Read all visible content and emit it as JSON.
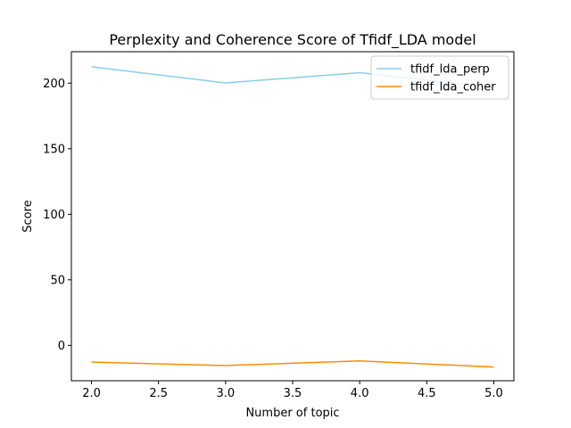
{
  "chart_data": {
    "type": "line",
    "title": "Perplexity and Coherence Score of Tfidf_LDA model",
    "xlabel": "Number of topic",
    "ylabel": "Score",
    "xlim": [
      1.85,
      5.15
    ],
    "ylim": [
      -27,
      224
    ],
    "xticks": [
      2.0,
      2.5,
      3.0,
      3.5,
      4.0,
      4.5,
      5.0
    ],
    "xtick_labels": [
      "2.0",
      "2.5",
      "3.0",
      "3.5",
      "4.0",
      "4.5",
      "5.0"
    ],
    "yticks": [
      0,
      50,
      100,
      150,
      200
    ],
    "ytick_labels": [
      "0",
      "50",
      "100",
      "150",
      "200"
    ],
    "grid": false,
    "legend_position": "top-right",
    "x": [
      2,
      3,
      4,
      5
    ],
    "series": [
      {
        "name": "tfidf_lda_perp",
        "values": [
          212.5,
          200.2,
          208.0,
          196.8
        ],
        "color": "#87ceeb"
      },
      {
        "name": "tfidf_lda_coher",
        "values": [
          -12.8,
          -15.4,
          -11.9,
          -16.5
        ],
        "color": "#ff8c00"
      }
    ]
  }
}
